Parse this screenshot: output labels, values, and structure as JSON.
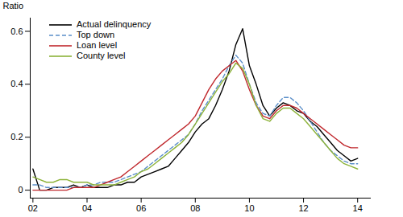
{
  "chart_data": {
    "type": "line",
    "ylabel": "Ratio",
    "legend": "top-left",
    "grid": false,
    "x": [
      2002,
      2002.25,
      2002.5,
      2002.75,
      2003,
      2003.25,
      2003.5,
      2003.75,
      2004,
      2004.25,
      2004.5,
      2004.75,
      2005,
      2005.25,
      2005.5,
      2005.75,
      2006,
      2006.25,
      2006.5,
      2006.75,
      2007,
      2007.25,
      2007.5,
      2007.75,
      2008,
      2008.25,
      2008.5,
      2008.75,
      2009,
      2009.25,
      2009.5,
      2009.75,
      2010,
      2010.25,
      2010.5,
      2010.75,
      2011,
      2011.25,
      2011.5,
      2011.75,
      2012,
      2012.25,
      2012.5,
      2012.75,
      2013,
      2013.25,
      2013.5,
      2013.75,
      2014
    ],
    "xlim": [
      2001.9,
      2014.5
    ],
    "xticks": [
      {
        "value": 2002,
        "label": "02"
      },
      {
        "value": 2004,
        "label": "04"
      },
      {
        "value": 2006,
        "label": "06"
      },
      {
        "value": 2008,
        "label": "08"
      },
      {
        "value": 2010,
        "label": "10"
      },
      {
        "value": 2012,
        "label": "12"
      },
      {
        "value": 2014,
        "label": "14"
      }
    ],
    "ylim": [
      -0.03,
      0.65
    ],
    "yticks": [
      0,
      0.2,
      0.4,
      0.6
    ],
    "series": [
      {
        "name": "Actual delinquency",
        "color": "#000000",
        "line_style": "solid",
        "values": [
          0.08,
          0.0,
          0.0,
          0.01,
          0.01,
          0.01,
          0.02,
          0.01,
          0.02,
          0.01,
          0.01,
          0.01,
          0.02,
          0.02,
          0.03,
          0.03,
          0.05,
          0.06,
          0.07,
          0.08,
          0.09,
          0.12,
          0.15,
          0.18,
          0.22,
          0.25,
          0.27,
          0.32,
          0.38,
          0.45,
          0.55,
          0.61,
          0.47,
          0.4,
          0.32,
          0.28,
          0.31,
          0.33,
          0.32,
          0.3,
          0.29,
          0.26,
          0.24,
          0.21,
          0.18,
          0.15,
          0.13,
          0.11,
          0.12
        ]
      },
      {
        "name": "Top down",
        "color": "#5b8fc9",
        "line_style": "dashed",
        "values": [
          0.02,
          0.02,
          0.01,
          0.01,
          0.01,
          0.01,
          0.01,
          0.01,
          0.02,
          0.02,
          0.03,
          0.03,
          0.03,
          0.04,
          0.05,
          0.06,
          0.07,
          0.09,
          0.11,
          0.13,
          0.15,
          0.17,
          0.19,
          0.21,
          0.25,
          0.3,
          0.34,
          0.38,
          0.42,
          0.47,
          0.51,
          0.48,
          0.4,
          0.33,
          0.29,
          0.28,
          0.32,
          0.35,
          0.35,
          0.33,
          0.3,
          0.26,
          0.22,
          0.18,
          0.15,
          0.13,
          0.11,
          0.1,
          0.1
        ]
      },
      {
        "name": "Loan level",
        "color": "#c0282d",
        "line_style": "solid",
        "values": [
          0.0,
          0.0,
          0.0,
          0.0,
          0.0,
          0.0,
          0.01,
          0.01,
          0.01,
          0.01,
          0.02,
          0.03,
          0.04,
          0.05,
          0.07,
          0.09,
          0.11,
          0.13,
          0.15,
          0.17,
          0.19,
          0.21,
          0.23,
          0.25,
          0.28,
          0.33,
          0.38,
          0.42,
          0.45,
          0.47,
          0.49,
          0.45,
          0.38,
          0.32,
          0.28,
          0.27,
          0.3,
          0.32,
          0.32,
          0.31,
          0.29,
          0.27,
          0.25,
          0.23,
          0.21,
          0.19,
          0.17,
          0.16,
          0.16
        ]
      },
      {
        "name": "County level",
        "color": "#8db33a",
        "line_style": "solid",
        "values": [
          0.05,
          0.04,
          0.03,
          0.03,
          0.04,
          0.04,
          0.03,
          0.03,
          0.03,
          0.02,
          0.02,
          0.02,
          0.02,
          0.03,
          0.04,
          0.05,
          0.07,
          0.08,
          0.1,
          0.12,
          0.14,
          0.16,
          0.18,
          0.21,
          0.25,
          0.29,
          0.33,
          0.37,
          0.41,
          0.44,
          0.48,
          0.46,
          0.4,
          0.32,
          0.27,
          0.26,
          0.29,
          0.31,
          0.31,
          0.29,
          0.27,
          0.24,
          0.21,
          0.18,
          0.15,
          0.12,
          0.1,
          0.09,
          0.08
        ]
      }
    ]
  }
}
